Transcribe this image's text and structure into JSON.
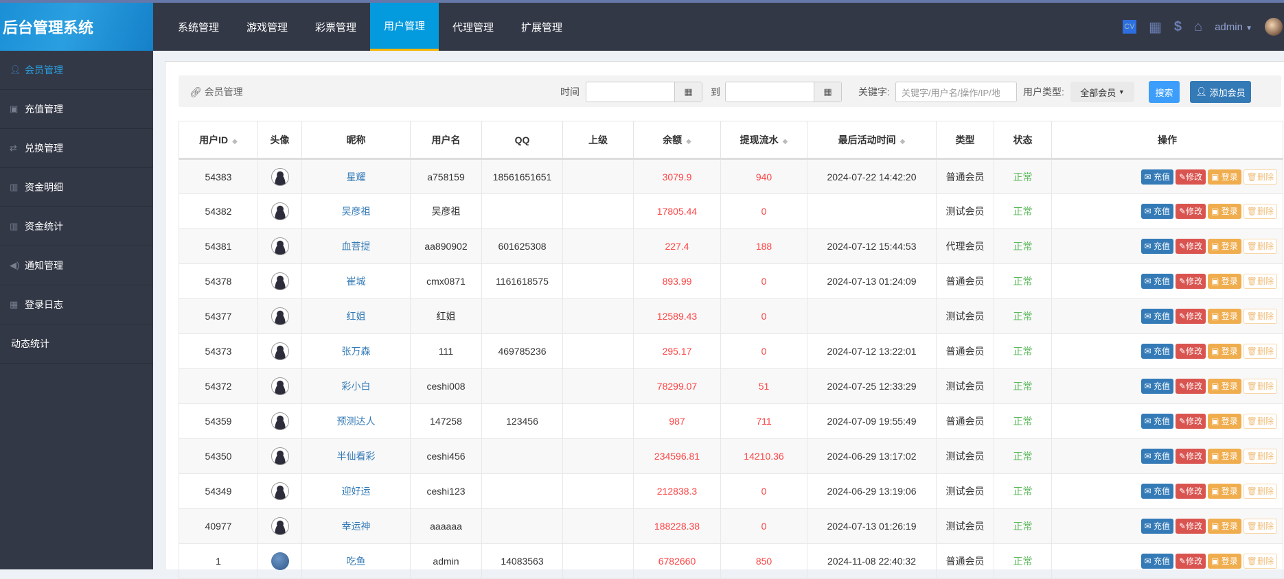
{
  "app": {
    "title": "后台管理系统"
  },
  "nav": {
    "tabs": [
      "系统管理",
      "游戏管理",
      "彩票管理",
      "用户管理",
      "代理管理",
      "扩展管理"
    ],
    "active": 3
  },
  "header": {
    "user": "admin"
  },
  "sidebar": {
    "items": [
      {
        "label": "会员管理",
        "icon": "user-icon"
      },
      {
        "label": "充值管理",
        "icon": "money-icon"
      },
      {
        "label": "兑换管理",
        "icon": "exchange-icon"
      },
      {
        "label": "资金明细",
        "icon": "bar-chart-icon"
      },
      {
        "label": "资金统计",
        "icon": "bar-chart-icon"
      },
      {
        "label": "通知管理",
        "icon": "volume-icon"
      },
      {
        "label": "登录日志",
        "icon": "calendar-icon"
      },
      {
        "label": "动态统计",
        "icon": ""
      }
    ]
  },
  "filter": {
    "breadcrumb": "会员管理",
    "time_label": "时间",
    "to_label": "到",
    "keyword_label": "关键字:",
    "keyword_placeholder": "关键字/用户名/操作/IP/地",
    "type_label": "用户类型:",
    "type_value": "全部会员",
    "search": "搜索",
    "add": "添加会员"
  },
  "table": {
    "columns": [
      "用户ID",
      "头像",
      "昵称",
      "用户名",
      "QQ",
      "上级",
      "余额",
      "提现流水",
      "最后活动时间",
      "类型",
      "状态",
      "操作"
    ],
    "actions": {
      "recharge": "充值",
      "edit": "修改",
      "login": "登录",
      "delete": "删除"
    },
    "rows": [
      [
        "54383",
        "",
        "星耀",
        "a758159",
        "18561651651",
        "",
        "3079.9",
        "940",
        "2024-07-22 14:42:20",
        "普通会员",
        "正常"
      ],
      [
        "54382",
        "",
        "吴彦祖",
        "吴彦祖",
        "",
        "",
        "17805.44",
        "0",
        "",
        "测试会员",
        "正常"
      ],
      [
        "54381",
        "",
        "血菩提",
        "aa890902",
        "601625308",
        "",
        "227.4",
        "188",
        "2024-07-12 15:44:53",
        "代理会员",
        "正常"
      ],
      [
        "54378",
        "",
        "崔城",
        "cmx0871",
        "1161618575",
        "",
        "893.99",
        "0",
        "2024-07-13 01:24:09",
        "普通会员",
        "正常"
      ],
      [
        "54377",
        "",
        "红姐",
        "红姐",
        "",
        "",
        "12589.43",
        "0",
        "",
        "测试会员",
        "正常"
      ],
      [
        "54373",
        "",
        "张万森",
        "111",
        "469785236",
        "",
        "295.17",
        "0",
        "2024-07-12 13:22:01",
        "普通会员",
        "正常"
      ],
      [
        "54372",
        "",
        "彩小白",
        "ceshi008",
        "",
        "",
        "78299.07",
        "51",
        "2024-07-25 12:33:29",
        "测试会员",
        "正常"
      ],
      [
        "54359",
        "",
        "预测达人",
        "147258",
        "123456",
        "",
        "987",
        "711",
        "2024-07-09 19:55:49",
        "普通会员",
        "正常"
      ],
      [
        "54350",
        "",
        "半仙看彩",
        "ceshi456",
        "",
        "",
        "234596.81",
        "14210.36",
        "2024-06-29 13:17:02",
        "测试会员",
        "正常"
      ],
      [
        "54349",
        "",
        "迎好运",
        "ceshi123",
        "",
        "",
        "212838.3",
        "0",
        "2024-06-29 13:19:06",
        "测试会员",
        "正常"
      ],
      [
        "40977",
        "",
        "幸运神",
        "aaaaaa",
        "",
        "",
        "188228.38",
        "0",
        "2024-07-13 01:26:19",
        "测试会员",
        "正常"
      ],
      [
        "1",
        "",
        "吃鱼",
        "admin",
        "14083563",
        "",
        "6782660",
        "850",
        "2024-11-08 22:40:32",
        "普通会员",
        "正常"
      ]
    ]
  }
}
